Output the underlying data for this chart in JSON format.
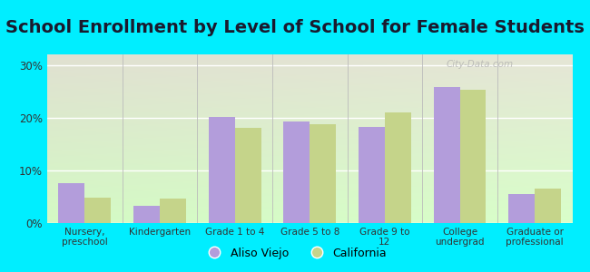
{
  "title": "School Enrollment by Level of School for Female Students",
  "categories": [
    "Nursery,\npreschool",
    "Kindergarten",
    "Grade 1 to 4",
    "Grade 5 to 8",
    "Grade 9 to\n12",
    "College\nundergrad",
    "Graduate or\nprofessional"
  ],
  "aliso_viejo": [
    7.5,
    3.2,
    20.2,
    19.3,
    18.2,
    25.8,
    5.5
  ],
  "california": [
    4.8,
    4.6,
    18.0,
    18.8,
    21.0,
    25.3,
    6.5
  ],
  "aliso_color": "#b39ddb",
  "california_color": "#c5d48a",
  "background_color": "#00eeff",
  "ylim": [
    0,
    32
  ],
  "yticks": [
    0,
    10,
    20,
    30
  ],
  "legend_labels": [
    "Aliso Viejo",
    "California"
  ],
  "bar_width": 0.35,
  "title_fontsize": 14,
  "watermark": "City-Data.com"
}
